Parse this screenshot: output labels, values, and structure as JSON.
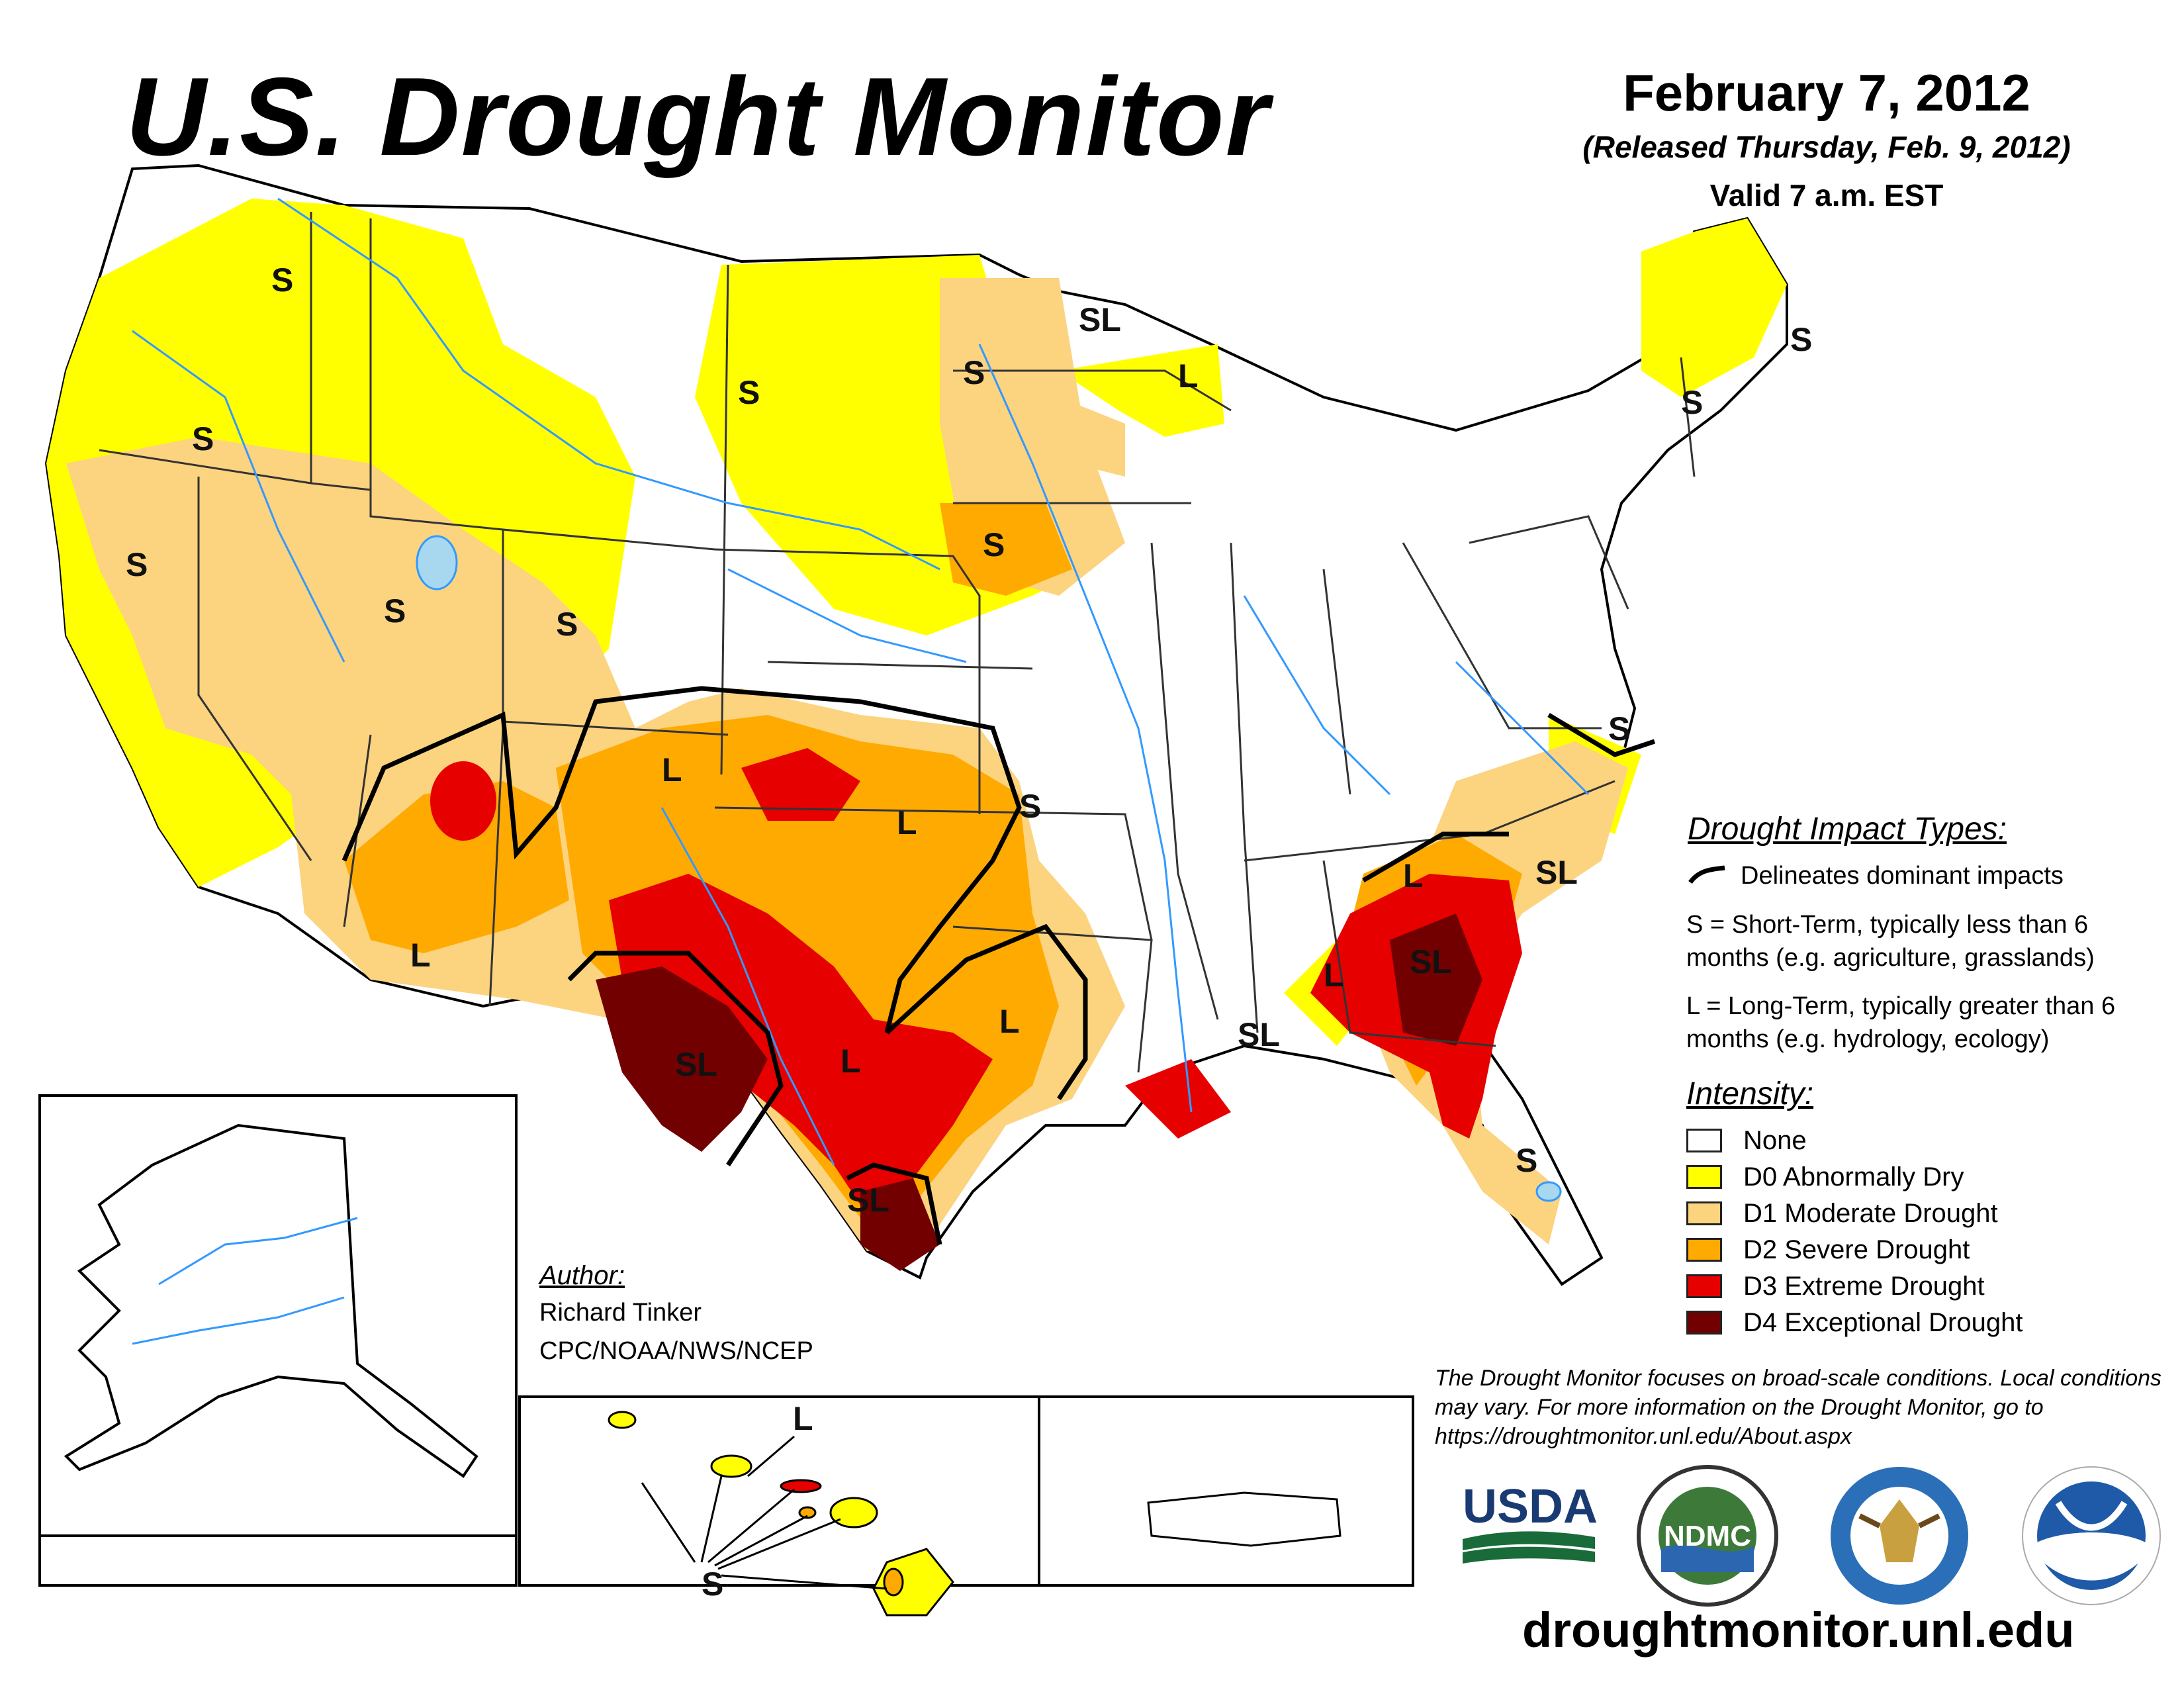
{
  "header": {
    "title": "U.S. Drought Monitor",
    "date": "February 7, 2012",
    "released": "(Released Thursday, Feb. 9, 2012)",
    "valid": "Valid 7 a.m. EST"
  },
  "impact_legend": {
    "title": "Drought Impact Types:",
    "delineates": "Delineates dominant impacts",
    "short_term": "S = Short-Term, typically less than 6 months (e.g. agriculture, grasslands)",
    "long_term": "L = Long-Term, typically greater than 6 months (e.g. hydrology, ecology)"
  },
  "intensity_legend": {
    "title": "Intensity:",
    "items": [
      {
        "label": "None",
        "color": "#ffffff"
      },
      {
        "label": "D0 Abnormally Dry",
        "color": "#ffff00"
      },
      {
        "label": "D1 Moderate Drought",
        "color": "#fcd37f"
      },
      {
        "label": "D2 Severe Drought",
        "color": "#ffaa00"
      },
      {
        "label": "D3 Extreme Drought",
        "color": "#e60000"
      },
      {
        "label": "D4 Exceptional Drought",
        "color": "#730000"
      }
    ]
  },
  "map_labels": {
    "s": "S",
    "l": "L",
    "sl": "SL"
  },
  "author": {
    "title": "Author:",
    "name": "Richard Tinker",
    "org": "CPC/NOAA/NWS/NCEP"
  },
  "disclaimer": "The Drought Monitor focuses on broad-scale conditions. Local conditions may vary. For more information on the Drought Monitor, go to https://droughtmonitor.unl.edu/About.aspx",
  "logos": {
    "usda": "USDA",
    "ndmc": "NDMC"
  },
  "url": "droughtmonitor.unl.edu",
  "colors": {
    "water": "#3399ff",
    "border": "#000000"
  }
}
